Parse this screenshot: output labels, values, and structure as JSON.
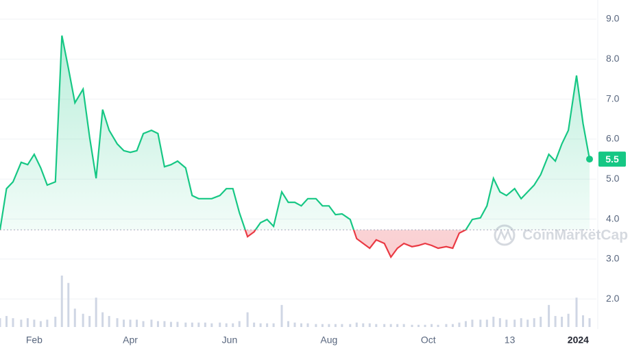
{
  "chart_data": {
    "type": "line",
    "x": [
      10,
      14,
      18,
      23,
      27,
      31,
      35,
      39,
      44,
      48,
      52,
      56,
      61,
      65,
      69,
      73,
      77,
      82,
      86,
      90,
      94,
      98,
      103,
      107,
      111,
      115,
      119,
      124,
      128,
      132,
      136,
      140,
      145,
      149,
      153,
      157,
      162,
      166,
      170,
      174,
      178,
      183,
      187,
      191,
      195,
      199,
      204,
      208,
      212,
      216,
      220,
      225,
      229,
      233,
      237,
      241,
      246,
      250,
      254,
      258,
      263,
      267,
      271,
      275,
      279,
      284,
      288,
      292,
      296,
      300,
      305,
      309,
      313,
      317,
      321,
      326,
      330,
      334,
      338,
      342,
      347,
      351,
      355,
      359,
      364,
      368,
      372
    ],
    "values": [
      3.73,
      4.76,
      4.93,
      5.42,
      5.36,
      5.62,
      5.28,
      4.85,
      4.93,
      8.59,
      7.77,
      6.91,
      7.25,
      6.05,
      5.02,
      6.74,
      6.22,
      5.88,
      5.71,
      5.67,
      5.71,
      6.14,
      6.22,
      6.14,
      5.31,
      5.36,
      5.45,
      5.28,
      4.59,
      4.51,
      4.51,
      4.51,
      4.59,
      4.76,
      4.76,
      4.16,
      3.56,
      3.68,
      3.91,
      3.99,
      3.82,
      4.68,
      4.42,
      4.42,
      4.33,
      4.51,
      4.51,
      4.33,
      4.33,
      4.11,
      4.13,
      3.99,
      3.51,
      3.39,
      3.27,
      3.48,
      3.39,
      3.05,
      3.27,
      3.39,
      3.31,
      3.34,
      3.39,
      3.34,
      3.27,
      3.31,
      3.27,
      3.65,
      3.73,
      3.99,
      4.03,
      4.33,
      5.02,
      4.68,
      4.59,
      4.76,
      4.51,
      4.68,
      4.85,
      5.11,
      5.62,
      5.45,
      5.88,
      6.22,
      7.59,
      6.39,
      5.5
    ],
    "volume": [
      12,
      15,
      12,
      10,
      12,
      10,
      8,
      10,
      14,
      70,
      60,
      25,
      18,
      15,
      40,
      20,
      15,
      12,
      10,
      10,
      10,
      8,
      10,
      8,
      8,
      7,
      7,
      6,
      6,
      6,
      6,
      5,
      6,
      5,
      5,
      8,
      20,
      6,
      5,
      5,
      5,
      30,
      8,
      6,
      5,
      5,
      4,
      4,
      4,
      4,
      4,
      4,
      6,
      5,
      5,
      4,
      4,
      4,
      4,
      4,
      3,
      3,
      3,
      4,
      3,
      4,
      4,
      6,
      8,
      10,
      10,
      10,
      14,
      12,
      10,
      10,
      12,
      10,
      12,
      14,
      30,
      15,
      14,
      18,
      40,
      16,
      12
    ],
    "color": "#16c784",
    "down_color": "#ea3943",
    "volume_color": "#cfd6e4",
    "baseline": 3.73,
    "last_label": "5.5",
    "xlim": [
      10,
      372
    ],
    "xticks": [
      {
        "value": 31,
        "label": "Feb"
      },
      {
        "value": 90,
        "label": "Apr"
      },
      {
        "value": 151,
        "label": "Jun"
      },
      {
        "value": 212,
        "label": "Aug"
      },
      {
        "value": 273,
        "label": "Oct"
      },
      {
        "value": 323,
        "label": "13"
      },
      {
        "value": 365,
        "label": "2024"
      }
    ],
    "ylim": [
      1.3,
      9.48
    ],
    "yticks": [
      {
        "value": 2,
        "label": "2.0"
      },
      {
        "value": 3,
        "label": "3.0"
      },
      {
        "value": 4,
        "label": "4.0"
      },
      {
        "value": 5,
        "label": "5.0"
      },
      {
        "value": 6,
        "label": "6.0"
      },
      {
        "value": 7,
        "label": "7.0"
      },
      {
        "value": 8,
        "label": "8.0"
      },
      {
        "value": 9,
        "label": "9.0"
      }
    ],
    "grid": true,
    "watermark": "CoinMarketCap"
  }
}
